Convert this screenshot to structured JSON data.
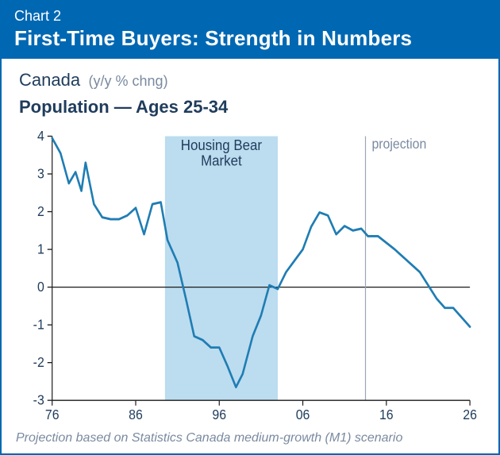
{
  "container": {
    "border_color": "#0068b3",
    "background_color": "#ffffff"
  },
  "header": {
    "background_color": "#0068b3",
    "text_color": "#ffffff",
    "chart_number": "Chart 2",
    "title": "First-Time Buyers: Strength in Numbers"
  },
  "subhead": {
    "region": "Canada",
    "unit": "(y/y % chng)",
    "series_label": "Population — Ages 25-34"
  },
  "chart": {
    "type": "line",
    "xlim": [
      76,
      126
    ],
    "ylim": [
      -3,
      4
    ],
    "xtick_step": 10,
    "xtick_labels": [
      "76",
      "86",
      "96",
      "06",
      "16",
      "26"
    ],
    "ytick_step": 1,
    "ytick_labels": [
      "-3",
      "-2",
      "-1",
      "0",
      "1",
      "2",
      "3",
      "4"
    ],
    "tick_label_color": "#1f3c5c",
    "tick_label_fontsize": 16,
    "axis_color": "#1a1a1a",
    "axis_width": 1.2,
    "tick_length": 6,
    "zero_line": true,
    "line_color": "#1f7db3",
    "line_width": 2.6,
    "shaded_region": {
      "x_start": 89.5,
      "x_end": 103,
      "fill": "#bcdcef",
      "label_line1": "Housing Bear",
      "label_line2": "Market",
      "label_color": "#1f3c5c"
    },
    "projection_line": {
      "x": 113.5,
      "color": "#9aa6b2",
      "width": 1.2,
      "label": "projection",
      "label_color": "#7a8aa0"
    },
    "points": [
      [
        76,
        3.95
      ],
      [
        77,
        3.55
      ],
      [
        78,
        2.75
      ],
      [
        78.8,
        3.05
      ],
      [
        79.5,
        2.55
      ],
      [
        80,
        3.3
      ],
      [
        81,
        2.2
      ],
      [
        82,
        1.85
      ],
      [
        83,
        1.8
      ],
      [
        84,
        1.8
      ],
      [
        85,
        1.9
      ],
      [
        86,
        2.1
      ],
      [
        87,
        1.4
      ],
      [
        88,
        2.2
      ],
      [
        89,
        2.25
      ],
      [
        89.8,
        1.25
      ],
      [
        91,
        0.65
      ],
      [
        92,
        -0.3
      ],
      [
        93,
        -1.3
      ],
      [
        94,
        -1.4
      ],
      [
        95,
        -1.6
      ],
      [
        96,
        -1.6
      ],
      [
        97,
        -2.1
      ],
      [
        98,
        -2.65
      ],
      [
        98.8,
        -2.3
      ],
      [
        100,
        -1.3
      ],
      [
        101,
        -0.75
      ],
      [
        102,
        0.05
      ],
      [
        103,
        -0.05
      ],
      [
        104,
        0.4
      ],
      [
        105,
        0.7
      ],
      [
        106,
        1.0
      ],
      [
        107,
        1.6
      ],
      [
        108,
        1.98
      ],
      [
        109,
        1.9
      ],
      [
        110,
        1.4
      ],
      [
        111,
        1.62
      ],
      [
        112,
        1.5
      ],
      [
        113,
        1.55
      ],
      [
        113.8,
        1.35
      ],
      [
        115,
        1.35
      ],
      [
        117,
        1.0
      ],
      [
        119,
        0.6
      ],
      [
        120,
        0.4
      ],
      [
        122,
        -0.3
      ],
      [
        123,
        -0.55
      ],
      [
        124,
        -0.55
      ],
      [
        125,
        -0.8
      ],
      [
        126,
        -1.05
      ]
    ]
  },
  "footnote": {
    "text": "Projection based on Statistics Canada medium-growth (M1) scenario"
  }
}
